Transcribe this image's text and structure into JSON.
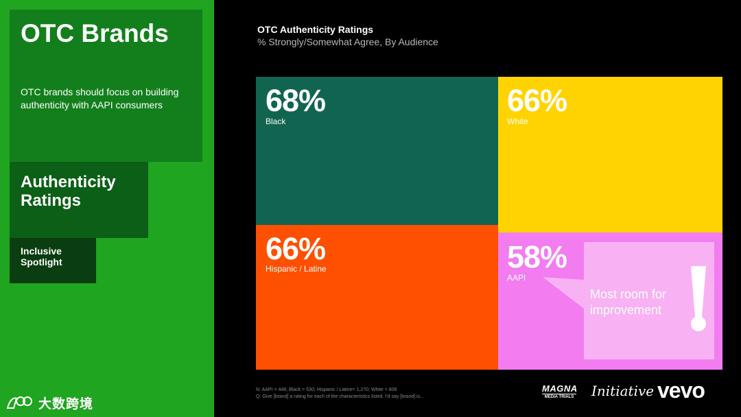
{
  "sidebar": {
    "title": "OTC Brands",
    "subtitle": "OTC brands should focus on building authenticity with AAPI consumers",
    "section_title": "Authenticity Ratings",
    "spotlight": "Inclusive Spotlight",
    "watermark": "大数跨境"
  },
  "colors": {
    "left_panel": "#1fa51f",
    "black": "#116550",
    "white": "#ffd300",
    "hispanic": "#ff4f00",
    "aapi": "#f27cf0",
    "callout": "#f8b2f3"
  },
  "chart_data": {
    "type": "treemap",
    "title": "OTC Authenticity Ratings",
    "subtitle": "% Strongly/Somewhat Agree, By Audience",
    "categories": [
      "Black",
      "White",
      "Hispanic / Latine",
      "AAPI"
    ],
    "values": [
      68,
      66,
      66,
      58
    ],
    "display_values": [
      "68%",
      "66%",
      "66%",
      "58%"
    ],
    "annotation": "Most room for improvement",
    "annotation_mark": "!"
  },
  "footnote": {
    "line1": "N: AAPI = 448; Black = 530; Hispanic / Latine= 1,270; White = 806",
    "line2": "Q: Give [brand] a rating for each of the characteristics listed. I'd say [brand] is..."
  },
  "logos": {
    "magna": "MAGNA",
    "magna_sub": "MEDIA TRIALS",
    "initiative": "Initiative",
    "vevo": "vevo"
  }
}
